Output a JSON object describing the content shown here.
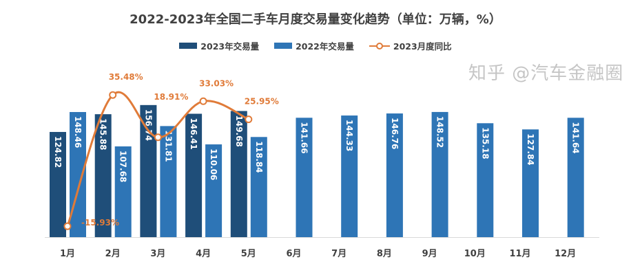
{
  "chart_data": {
    "type": "bar",
    "title": "2022-2023年全国二手车月度交易量变化趋势（单位：万辆，%）",
    "categories": [
      "1月",
      "2月",
      "3月",
      "4月",
      "5月",
      "6月",
      "7月",
      "8月",
      "9月",
      "10月",
      "11月",
      "12月"
    ],
    "series": [
      {
        "name": "2023年交易量",
        "type": "bar",
        "color": "#1F4E79",
        "values": [
          124.82,
          145.88,
          156.74,
          146.41,
          149.68,
          null,
          null,
          null,
          null,
          null,
          null,
          null
        ]
      },
      {
        "name": "2022年交易量",
        "type": "bar",
        "color": "#2E75B6",
        "values": [
          148.46,
          107.68,
          131.81,
          110.06,
          118.84,
          141.66,
          144.33,
          146.76,
          148.52,
          135.18,
          127.84,
          141.64
        ]
      },
      {
        "name": "2023月度同比",
        "type": "line",
        "color": "#E07B39",
        "unit": "%",
        "values": [
          -15.93,
          35.48,
          18.91,
          33.03,
          25.95,
          null,
          null,
          null,
          null,
          null,
          null,
          null
        ]
      }
    ],
    "grid": false,
    "legend": "top"
  },
  "watermark": "知乎 @汽车金融圈"
}
